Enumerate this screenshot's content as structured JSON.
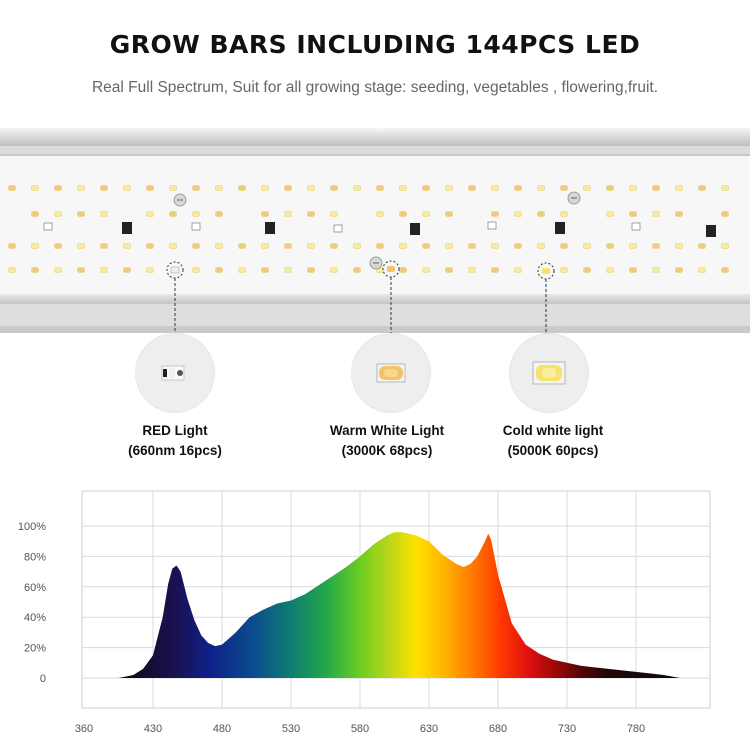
{
  "header": {
    "title": "GROW BARS INCLUDING 144PCS LED",
    "subtitle": "Real Full Spectrum,  Suit for all growing stage: seeding, vegetables , flowering,fruit."
  },
  "callouts": [
    {
      "name": "RED Light",
      "detail": "(660nm 16pcs)",
      "led": "red-led"
    },
    {
      "name": "Warm White Light",
      "detail": "(3000K 68pcs)",
      "led": "warm-white-led"
    },
    {
      "name": "Cold white light",
      "detail": "(5000K 60pcs)",
      "led": "cold-white-led"
    }
  ],
  "chart_data": {
    "type": "area",
    "xlabel": "",
    "ylabel": "",
    "x_ticks": [
      "360",
      "430",
      "480",
      "530",
      "580",
      "630",
      "680",
      "730",
      "780"
    ],
    "y_ticks": [
      "0",
      "20%",
      "40%",
      "60%",
      "80%",
      "100%"
    ],
    "xlim": [
      360,
      820
    ],
    "ylim": [
      0,
      100
    ],
    "grid": true,
    "series": [
      {
        "x": [
          395,
          410,
          420,
          430,
          437,
          441,
          444,
          447,
          450,
          455,
          460,
          465,
          470,
          475,
          480,
          490,
          500,
          510,
          520,
          530,
          540,
          550,
          560,
          570,
          580,
          590,
          600,
          605,
          610,
          620,
          630,
          640,
          650,
          655,
          660,
          665,
          670,
          673,
          675,
          680,
          690,
          700,
          710,
          720,
          730,
          740,
          750,
          760,
          770,
          780,
          790,
          800,
          812
        ],
        "values": [
          0,
          2,
          6,
          15,
          40,
          62,
          72,
          74,
          70,
          52,
          38,
          28,
          23,
          21,
          22,
          30,
          40,
          45,
          49,
          51,
          55,
          61,
          67,
          73,
          80,
          88,
          94,
          96,
          96,
          94,
          90,
          81,
          75,
          73,
          75,
          80,
          89,
          95,
          91,
          68,
          36,
          22,
          16,
          12,
          10,
          8,
          7,
          6,
          5,
          4,
          3,
          2,
          0
        ]
      }
    ],
    "colors": [
      "#120812",
      "#1a1150",
      "#0f1f87",
      "#0b4c8e",
      "#0f7f70",
      "#23a84a",
      "#6ccd22",
      "#b8d61a",
      "#ffe200",
      "#ffb400",
      "#ff7a00",
      "#ff3a00",
      "#e01010",
      "#9a0808",
      "#5a0505",
      "#200808",
      "#0a0a0a"
    ]
  }
}
